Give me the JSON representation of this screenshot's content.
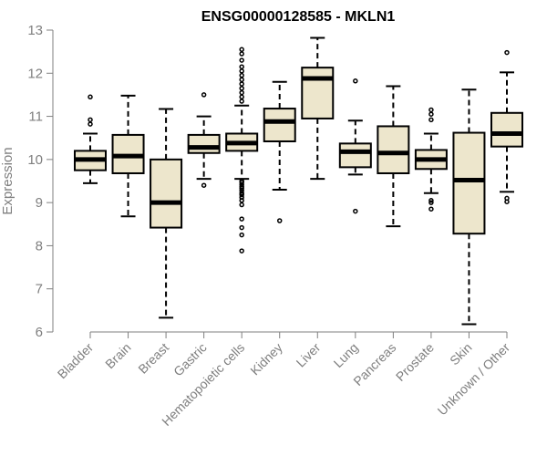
{
  "chart_data": {
    "type": "boxplot",
    "title": "ENSG00000128585 - MKLN1",
    "xlabel": "",
    "ylabel": "Expression",
    "ylim": [
      6,
      13
    ],
    "yticks": [
      6,
      7,
      8,
      9,
      10,
      11,
      12,
      13
    ],
    "box_color": "#ede6cc",
    "axis_color": "#7f7f7f",
    "categories": [
      "Bladder",
      "Brain",
      "Breast",
      "Gastric",
      "Hematopoietic cells",
      "Kidney",
      "Liver",
      "Lung",
      "Pancreas",
      "Prostate",
      "Skin",
      "Unknown / Other"
    ],
    "boxes": [
      {
        "name": "Bladder",
        "q1": 9.75,
        "median": 10.0,
        "q3": 10.2,
        "whisker_low": 9.45,
        "whisker_high": 10.6,
        "outliers": [
          10.82,
          10.92,
          11.45
        ]
      },
      {
        "name": "Brain",
        "q1": 9.68,
        "median": 10.08,
        "q3": 10.57,
        "whisker_low": 8.68,
        "whisker_high": 11.48,
        "outliers": []
      },
      {
        "name": "Breast",
        "q1": 8.42,
        "median": 9.0,
        "q3": 10.0,
        "whisker_low": 6.33,
        "whisker_high": 11.17,
        "outliers": []
      },
      {
        "name": "Gastric",
        "q1": 10.15,
        "median": 10.28,
        "q3": 10.57,
        "whisker_low": 9.55,
        "whisker_high": 11.0,
        "outliers": [
          9.4,
          11.5
        ]
      },
      {
        "name": "Hematopoietic cells",
        "q1": 10.2,
        "median": 10.38,
        "q3": 10.6,
        "whisker_low": 9.55,
        "whisker_high": 11.25,
        "outliers": [
          7.88,
          8.25,
          8.42,
          8.62,
          8.95,
          9.05,
          9.12,
          9.18,
          9.22,
          9.28,
          9.33,
          9.37,
          9.42,
          9.47,
          9.5,
          11.35,
          11.45,
          11.55,
          11.65,
          11.75,
          11.85,
          11.95,
          12.05,
          12.15,
          12.3,
          12.45,
          12.55
        ]
      },
      {
        "name": "Kidney",
        "q1": 10.42,
        "median": 10.88,
        "q3": 11.18,
        "whisker_low": 9.3,
        "whisker_high": 11.8,
        "outliers": [
          8.58
        ]
      },
      {
        "name": "Liver",
        "q1": 10.95,
        "median": 11.88,
        "q3": 12.13,
        "whisker_low": 9.55,
        "whisker_high": 12.82,
        "outliers": []
      },
      {
        "name": "Lung",
        "q1": 9.82,
        "median": 10.18,
        "q3": 10.37,
        "whisker_low": 9.65,
        "whisker_high": 10.9,
        "outliers": [
          8.8,
          11.82
        ]
      },
      {
        "name": "Pancreas",
        "q1": 9.68,
        "median": 10.15,
        "q3": 10.77,
        "whisker_low": 8.45,
        "whisker_high": 11.7,
        "outliers": []
      },
      {
        "name": "Prostate",
        "q1": 9.78,
        "median": 10.0,
        "q3": 10.22,
        "whisker_low": 9.22,
        "whisker_high": 10.6,
        "outliers": [
          8.85,
          9.0,
          9.05,
          10.92,
          11.05,
          11.15
        ]
      },
      {
        "name": "Skin",
        "q1": 8.28,
        "median": 9.52,
        "q3": 10.62,
        "whisker_low": 6.18,
        "whisker_high": 11.62,
        "outliers": []
      },
      {
        "name": "Unknown / Other",
        "q1": 10.3,
        "median": 10.6,
        "q3": 11.08,
        "whisker_low": 9.25,
        "whisker_high": 12.02,
        "outliers": [
          9.02,
          9.1,
          12.48
        ]
      }
    ]
  }
}
